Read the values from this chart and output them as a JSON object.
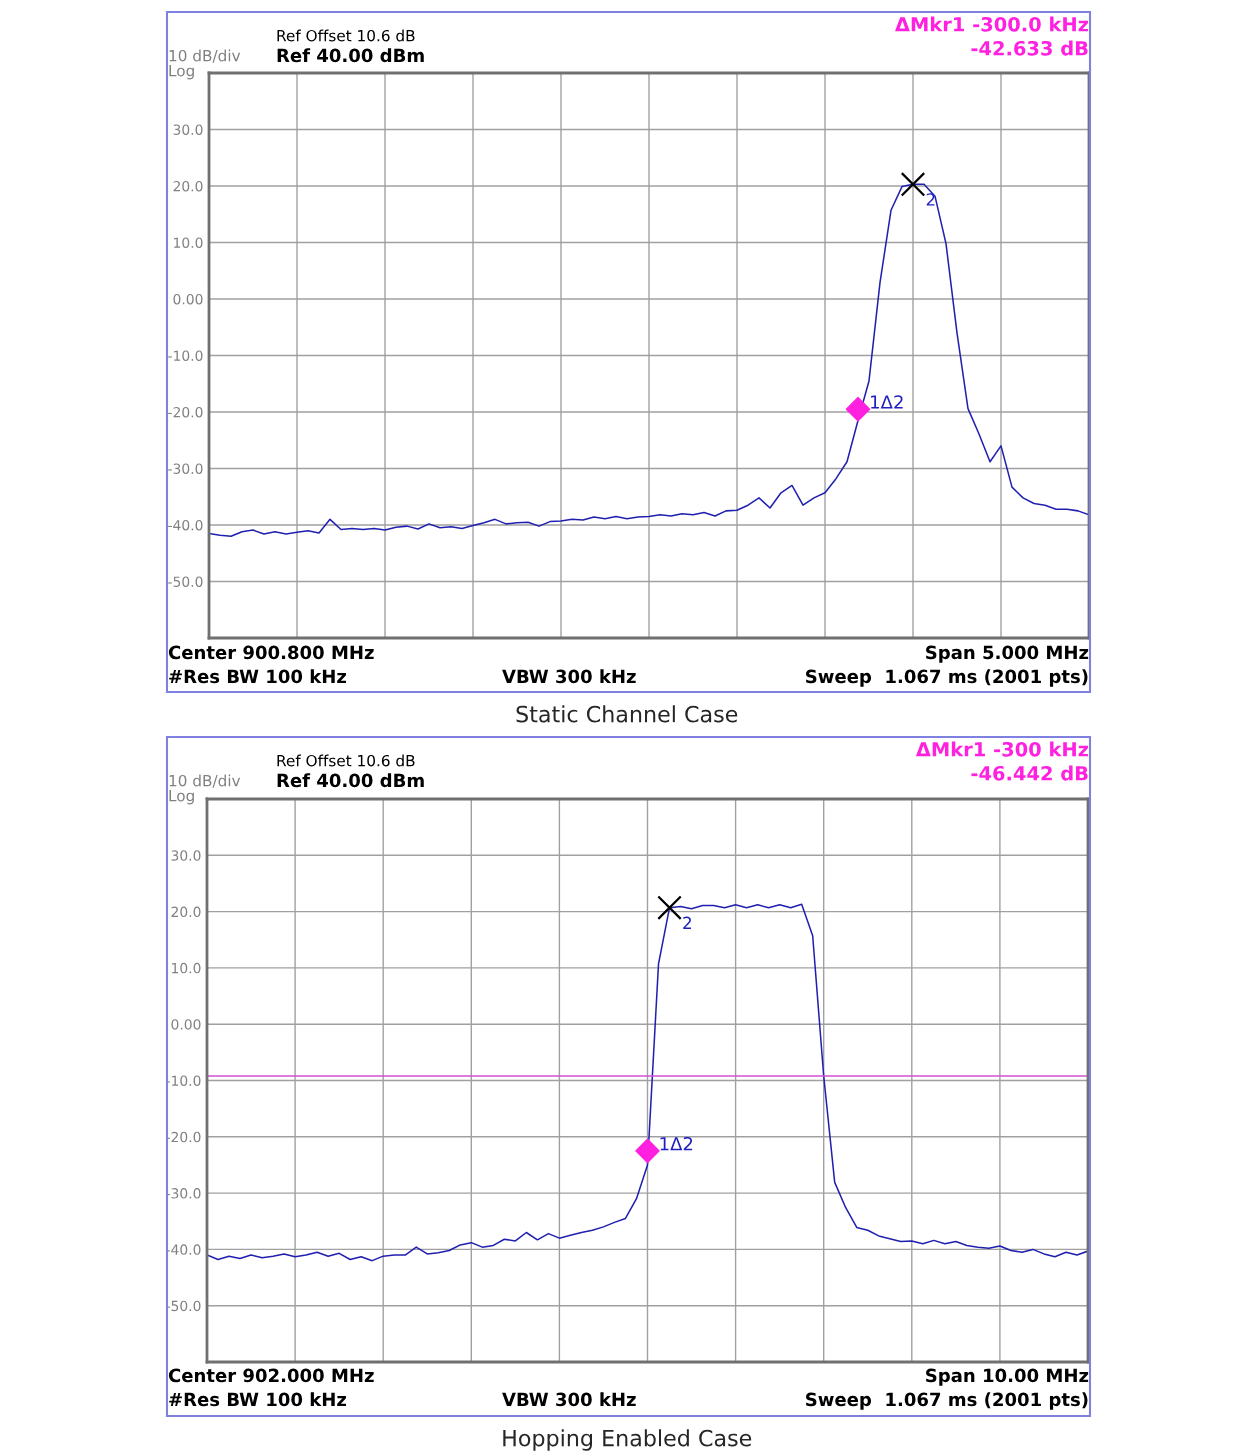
{
  "chart_data": [
    {
      "type": "line",
      "title": "Static Channel Case",
      "annotations": [
        "Ref Offset 10.6 dB",
        "Ref 40.00 dBm",
        "10 dB/div",
        "Log",
        "ΔMkr1 -300.0 kHz",
        "-42.633 dB",
        "Center 900.800 MHz",
        "#Res BW 100 kHz",
        "VBW 300 kHz",
        "Span 5.000 MHz",
        "Sweep  1.067 ms (2001 pts)",
        "1Δ2",
        "2"
      ],
      "categories": [
        null,
        null,
        null,
        null,
        null,
        null,
        null,
        null,
        null,
        null,
        null,
        null,
        null,
        null,
        null,
        null,
        null,
        null,
        null,
        null,
        null,
        null,
        null,
        null,
        null,
        null,
        null,
        null,
        null,
        null,
        null,
        null,
        null,
        null,
        null,
        null,
        null,
        null,
        null,
        null,
        null,
        null,
        null,
        null,
        null,
        null,
        null,
        null,
        null,
        null,
        null,
        null,
        null,
        null,
        null,
        null,
        null,
        null,
        null,
        null,
        null,
        null,
        null,
        null,
        null,
        null,
        null,
        null,
        null,
        null,
        null,
        null,
        null,
        null,
        null,
        null,
        null,
        null,
        null,
        null,
        null
      ],
      "series": [
        {
          "color": "#2020b0",
          "values": [
            -41.5,
            -41.8,
            -42.0,
            -41.2,
            -40.9,
            -41.6,
            -41.2,
            -41.6,
            -41.3,
            -41.0,
            -41.4,
            -39.0,
            -40.8,
            -40.6,
            -40.8,
            -40.6,
            -40.9,
            -40.4,
            -40.2,
            -40.7,
            -39.8,
            -40.5,
            -40.3,
            -40.6,
            -40.1,
            -39.6,
            -39.0,
            -39.8,
            -39.6,
            -39.5,
            -40.2,
            -39.4,
            -39.3,
            -39.0,
            -39.1,
            -38.6,
            -38.9,
            -38.5,
            -38.9,
            -38.6,
            -38.5,
            -38.2,
            -38.4,
            -38.0,
            -38.2,
            -37.8,
            -38.4,
            -37.5,
            -37.4,
            -36.5,
            -35.2,
            -37.0,
            -34.3,
            -33.0,
            -36.5,
            -35.2,
            -34.3,
            -31.8,
            -28.8,
            -21.5,
            -14.5,
            2.9,
            15.7,
            19.9,
            20.3,
            20.3,
            18.2,
            9.8,
            -6.0,
            -19.4,
            -23.9,
            -28.8,
            -26.0,
            -33.3,
            -35.2,
            -36.2,
            -36.5,
            -37.2,
            -37.2,
            -37.5,
            -38.2
          ]
        },
        {
          "type": "scatter",
          "marker": "diamond",
          "color": "#ff20e0",
          "values": [
            null,
            null,
            null,
            null,
            null,
            null,
            null,
            null,
            null,
            null,
            null,
            null,
            null,
            null,
            null,
            null,
            null,
            null,
            null,
            null,
            null,
            null,
            null,
            null,
            null,
            null,
            null,
            null,
            null,
            null,
            null,
            null,
            null,
            null,
            null,
            null,
            null,
            null,
            null,
            null,
            null,
            null,
            null,
            null,
            null,
            null,
            null,
            null,
            null,
            null,
            null,
            null,
            null,
            null,
            null,
            null,
            null,
            null,
            null,
            -19.5,
            null,
            null,
            null,
            null,
            null,
            null,
            null,
            null,
            null,
            null,
            null,
            null,
            null,
            null,
            null,
            null,
            null,
            null,
            null,
            null,
            null
          ]
        },
        {
          "type": "scatter",
          "marker": "cross",
          "color": "#000000",
          "values": [
            null,
            null,
            null,
            null,
            null,
            null,
            null,
            null,
            null,
            null,
            null,
            null,
            null,
            null,
            null,
            null,
            null,
            null,
            null,
            null,
            null,
            null,
            null,
            null,
            null,
            null,
            null,
            null,
            null,
            null,
            null,
            null,
            null,
            null,
            null,
            null,
            null,
            null,
            null,
            null,
            null,
            null,
            null,
            null,
            null,
            null,
            null,
            null,
            null,
            null,
            null,
            null,
            null,
            null,
            null,
            null,
            null,
            null,
            null,
            null,
            null,
            null,
            null,
            null,
            20.3,
            null,
            null,
            null,
            null,
            null,
            null,
            null,
            null,
            null,
            null,
            null,
            null,
            null,
            null,
            null,
            null
          ]
        }
      ],
      "ylim": [
        -60,
        40
      ],
      "yticks": [
        {
          "value": 30,
          "label": "30.0"
        },
        {
          "value": 20,
          "label": "20.0"
        },
        {
          "value": 10,
          "label": "10.0"
        },
        {
          "value": 0,
          "label": "0.00"
        },
        {
          "value": -10,
          "label": "-10.0"
        },
        {
          "value": -20,
          "label": "-20.0"
        },
        {
          "value": -30,
          "label": "-30.0"
        },
        {
          "value": -40,
          "label": "-40.0"
        },
        {
          "value": -50,
          "label": "-50.0"
        }
      ],
      "grid": true,
      "tick_labels": "y"
    },
    {
      "type": "line",
      "title": "Hopping Enabled Case",
      "annotations": [
        "Ref Offset 10.6 dB",
        "Ref 40.00 dBm",
        "10 dB/div",
        "Log",
        "ΔMkr1 -300 kHz",
        "-46.442 dB",
        "Center 902.000 MHz",
        "#Res BW 100 kHz",
        "VBW 300 kHz",
        "Span 10.00 MHz",
        "Sweep  1.067 ms (2001 pts)",
        "1Δ2",
        "2"
      ],
      "categories": [
        null,
        null,
        null,
        null,
        null,
        null,
        null,
        null,
        null,
        null,
        null,
        null,
        null,
        null,
        null,
        null,
        null,
        null,
        null,
        null,
        null,
        null,
        null,
        null,
        null,
        null,
        null,
        null,
        null,
        null,
        null,
        null,
        null,
        null,
        null,
        null,
        null,
        null,
        null,
        null,
        null,
        null,
        null,
        null,
        null,
        null,
        null,
        null,
        null,
        null,
        null,
        null,
        null,
        null,
        null,
        null,
        null,
        null,
        null,
        null,
        null,
        null,
        null,
        null,
        null,
        null,
        null,
        null,
        null,
        null,
        null,
        null,
        null,
        null,
        null,
        null,
        null,
        null,
        null,
        null,
        null
      ],
      "series": [
        {
          "color": "#2020b0",
          "values": [
            -41.0,
            -41.8,
            -41.2,
            -41.6,
            -41.0,
            -41.5,
            -41.2,
            -40.8,
            -41.3,
            -41.0,
            -40.5,
            -41.2,
            -40.7,
            -41.8,
            -41.3,
            -42.0,
            -41.2,
            -41.0,
            -41.0,
            -39.6,
            -40.8,
            -40.6,
            -40.2,
            -39.2,
            -38.8,
            -39.6,
            -39.3,
            -38.2,
            -38.5,
            -37.0,
            -38.3,
            -37.2,
            -38.0,
            -37.5,
            -37.0,
            -36.6,
            -36.0,
            -35.2,
            -34.5,
            -31.0,
            -25.0,
            10.7,
            20.7,
            20.9,
            20.5,
            21.1,
            21.1,
            20.7,
            21.2,
            20.7,
            21.2,
            20.7,
            21.2,
            20.7,
            21.3,
            15.7,
            -9.2,
            -28.1,
            -32.6,
            -36.1,
            -36.6,
            -37.6,
            -38.1,
            -38.6,
            -38.5,
            -39.0,
            -38.4,
            -39.0,
            -38.6,
            -39.3,
            -39.6,
            -39.8,
            -39.4,
            -40.2,
            -40.5,
            -40.0,
            -40.8,
            -41.3,
            -40.5,
            -41.0,
            -40.3
          ]
        },
        {
          "type": "scatter",
          "marker": "diamond",
          "color": "#ff20e0",
          "values": [
            null,
            null,
            null,
            null,
            null,
            null,
            null,
            null,
            null,
            null,
            null,
            null,
            null,
            null,
            null,
            null,
            null,
            null,
            null,
            null,
            null,
            null,
            null,
            null,
            null,
            null,
            null,
            null,
            null,
            null,
            null,
            null,
            null,
            null,
            null,
            null,
            null,
            null,
            null,
            null,
            -22.5,
            null,
            null,
            null,
            null,
            null,
            null,
            null,
            null,
            null,
            null,
            null,
            null,
            null,
            null,
            null,
            null,
            null,
            null,
            null,
            null,
            null,
            null,
            null,
            null,
            null,
            null,
            null,
            null,
            null,
            null,
            null,
            null,
            null,
            null,
            null,
            null,
            null,
            null,
            null,
            null
          ]
        },
        {
          "type": "scatter",
          "marker": "cross",
          "color": "#000000",
          "values": [
            null,
            null,
            null,
            null,
            null,
            null,
            null,
            null,
            null,
            null,
            null,
            null,
            null,
            null,
            null,
            null,
            null,
            null,
            null,
            null,
            null,
            null,
            null,
            null,
            null,
            null,
            null,
            null,
            null,
            null,
            null,
            null,
            null,
            null,
            null,
            null,
            null,
            null,
            null,
            null,
            null,
            null,
            20.7,
            null,
            null,
            null,
            null,
            null,
            null,
            null,
            null,
            null,
            null,
            null,
            null,
            null,
            null,
            null,
            null,
            null,
            null,
            null,
            null,
            null,
            null,
            null,
            null,
            null,
            null,
            null,
            null,
            null,
            null,
            null,
            null,
            null,
            null,
            null,
            null,
            null,
            null
          ]
        }
      ],
      "ref_lines": [
        {
          "axis": "y",
          "value": -9.2,
          "color": "#d050d0"
        }
      ],
      "ylim": [
        -60,
        40
      ],
      "yticks": [
        {
          "value": 30,
          "label": "30.0"
        },
        {
          "value": 20,
          "label": "20.0"
        },
        {
          "value": 10,
          "label": "10.0"
        },
        {
          "value": 0,
          "label": "0.00"
        },
        {
          "value": -10,
          "label": "-10.0"
        },
        {
          "value": -20,
          "label": "-20.0"
        },
        {
          "value": -30,
          "label": "-30.0"
        },
        {
          "value": -40,
          "label": "-40.0"
        },
        {
          "value": -50,
          "label": "-50.0"
        }
      ],
      "grid": true,
      "tick_labels": "y"
    }
  ]
}
